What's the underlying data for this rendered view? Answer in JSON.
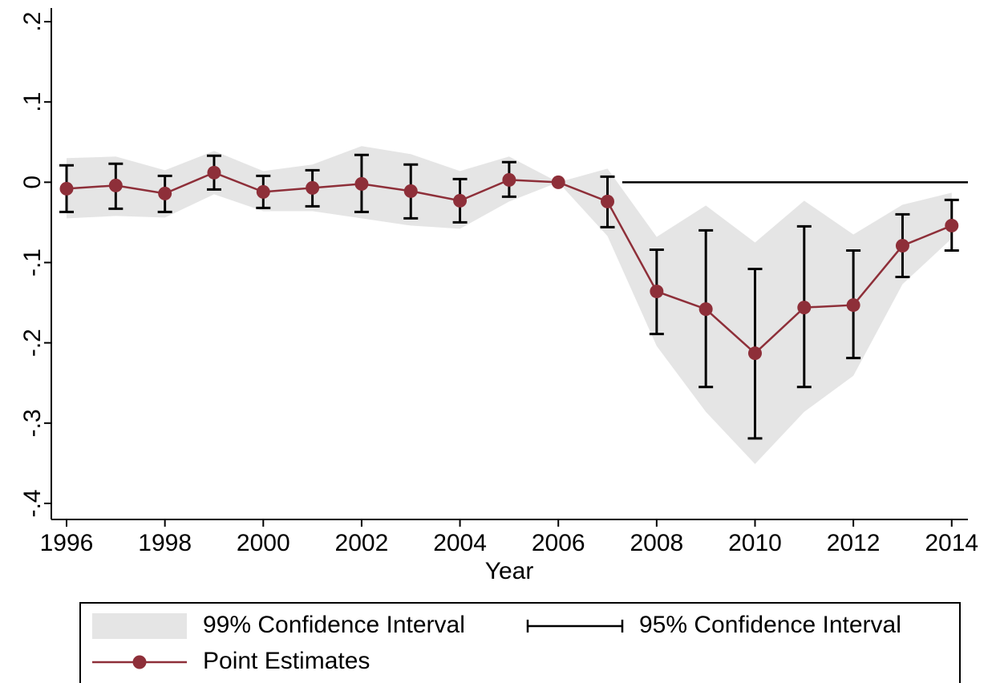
{
  "chart_data": {
    "type": "event-study",
    "x_label": "Year",
    "x": [
      1996,
      1997,
      1998,
      1999,
      2000,
      2001,
      2002,
      2003,
      2004,
      2005,
      2006,
      2007,
      2008,
      2009,
      2010,
      2011,
      2012,
      2013,
      2014
    ],
    "series": [
      {
        "name": "99% Confidence Interval",
        "kind": "band",
        "color": "#e5e5e5",
        "upper": [
          0.03,
          0.032,
          0.015,
          0.039,
          0.014,
          0.022,
          0.045,
          0.035,
          0.014,
          0.032,
          0,
          0.017,
          -0.068,
          -0.029,
          -0.075,
          -0.023,
          -0.065,
          -0.028,
          -0.013
        ],
        "lower": [
          -0.045,
          -0.042,
          -0.044,
          -0.015,
          -0.036,
          -0.036,
          -0.045,
          -0.054,
          -0.058,
          -0.024,
          0,
          -0.067,
          -0.204,
          -0.286,
          -0.351,
          -0.286,
          -0.241,
          -0.127,
          -0.07
        ]
      },
      {
        "name": "95% Confidence Interval",
        "kind": "errorbar",
        "color": "#000000",
        "upper": [
          0.021,
          0.023,
          0.008,
          0.033,
          0.008,
          0.015,
          0.034,
          0.022,
          0.004,
          0.025,
          null,
          0.007,
          -0.084,
          -0.06,
          -0.108,
          -0.055,
          -0.085,
          -0.04,
          -0.022
        ],
        "lower": [
          -0.037,
          -0.033,
          -0.037,
          -0.009,
          -0.032,
          -0.03,
          -0.037,
          -0.045,
          -0.05,
          -0.018,
          null,
          -0.056,
          -0.189,
          -0.255,
          -0.319,
          -0.255,
          -0.219,
          -0.118,
          -0.085
        ]
      },
      {
        "name": "Point Estimates",
        "kind": "line",
        "color": "#8e2f39",
        "values": [
          -0.008,
          -0.004,
          -0.014,
          0.012,
          -0.012,
          -0.007,
          -0.002,
          -0.011,
          -0.023,
          0.003,
          0,
          -0.024,
          -0.136,
          -0.158,
          -0.213,
          -0.156,
          -0.153,
          -0.079,
          -0.054
        ]
      }
    ],
    "reference_line": {
      "y": 0,
      "x": [
        2007.3,
        2014.33
      ]
    },
    "xlim": [
      1995.69,
      2014.33
    ],
    "ylim": [
      -0.42,
      0.217
    ],
    "xticks": [
      1996,
      1998,
      2000,
      2002,
      2004,
      2006,
      2008,
      2010,
      2012,
      2014
    ],
    "yticks": [
      {
        "value": 0.2,
        "label": ".2"
      },
      {
        "value": 0.1,
        "label": ".1"
      },
      0,
      {
        "value": -0.1,
        "label": "-.1"
      },
      {
        "value": -0.2,
        "label": "-.2"
      },
      {
        "value": -0.3,
        "label": "-.3"
      },
      {
        "value": -0.4,
        "label": "-.4"
      }
    ]
  }
}
